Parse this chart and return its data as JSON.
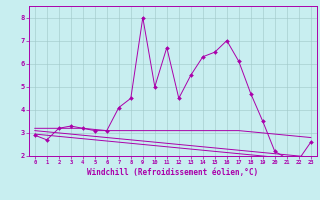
{
  "x": [
    0,
    1,
    2,
    3,
    4,
    5,
    6,
    7,
    8,
    9,
    10,
    11,
    12,
    13,
    14,
    15,
    16,
    17,
    18,
    19,
    20,
    21,
    22,
    23
  ],
  "line1": [
    2.9,
    2.7,
    3.2,
    3.3,
    3.2,
    3.1,
    3.1,
    4.1,
    4.5,
    8.0,
    5.0,
    6.7,
    4.5,
    5.5,
    6.3,
    6.5,
    7.0,
    6.1,
    4.7,
    3.5,
    2.2,
    1.9,
    1.85,
    2.6
  ],
  "trend1": [
    3.2,
    3.2,
    3.2,
    3.2,
    3.2,
    3.15,
    3.1,
    3.1,
    3.1,
    3.1,
    3.1,
    3.1,
    3.1,
    3.1,
    3.1,
    3.1,
    3.1,
    3.1,
    3.05,
    3.0,
    2.95,
    2.9,
    2.85,
    2.8
  ],
  "trend2": [
    3.1,
    3.05,
    3.0,
    2.95,
    2.9,
    2.85,
    2.8,
    2.75,
    2.7,
    2.65,
    2.6,
    2.55,
    2.5,
    2.45,
    2.4,
    2.35,
    2.3,
    2.25,
    2.2,
    2.15,
    2.1,
    2.05,
    2.0,
    1.95
  ],
  "trend3": [
    2.95,
    2.9,
    2.85,
    2.8,
    2.75,
    2.7,
    2.65,
    2.6,
    2.55,
    2.5,
    2.45,
    2.4,
    2.35,
    2.3,
    2.25,
    2.2,
    2.15,
    2.1,
    2.05,
    2.0,
    1.95,
    1.9,
    1.85,
    1.8
  ],
  "line_color": "#aa00aa",
  "bg_color": "#c8eef0",
  "xlabel": "Windchill (Refroidissement éolien,°C)",
  "ylim": [
    2.0,
    8.5
  ],
  "xlim": [
    -0.5,
    23.5
  ],
  "yticks": [
    2,
    3,
    4,
    5,
    6,
    7,
    8
  ],
  "xticks": [
    0,
    1,
    2,
    3,
    4,
    5,
    6,
    7,
    8,
    9,
    10,
    11,
    12,
    13,
    14,
    15,
    16,
    17,
    18,
    19,
    20,
    21,
    22,
    23
  ]
}
